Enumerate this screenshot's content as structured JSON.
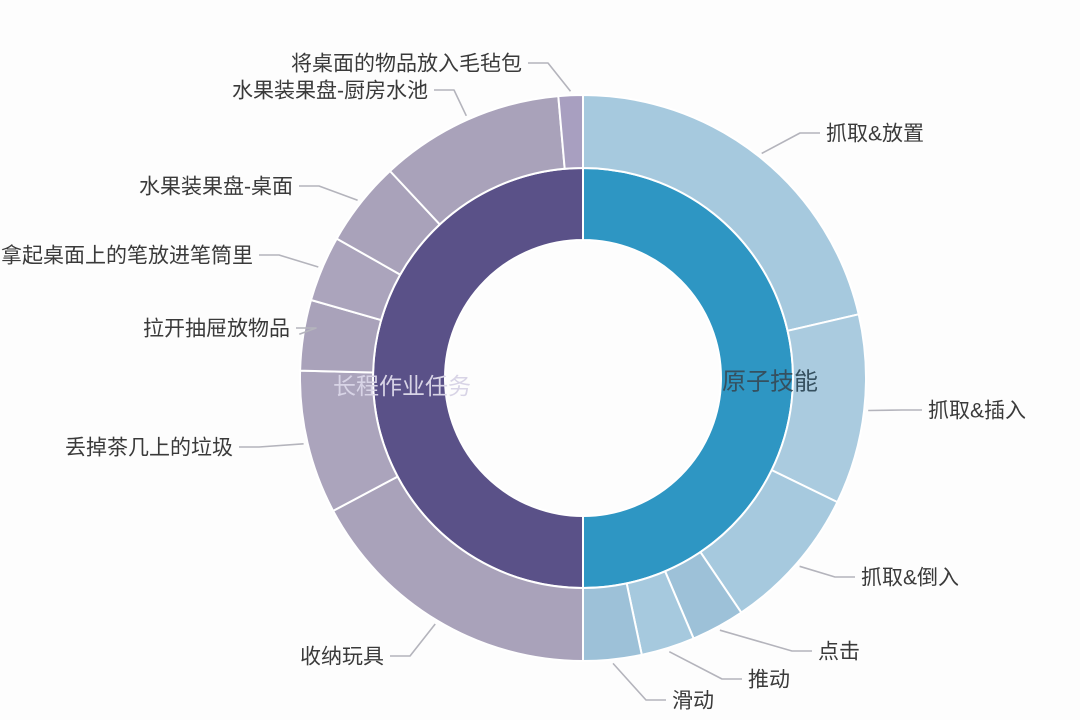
{
  "figure": {
    "background": "#fdfdfd"
  },
  "chart_data": {
    "type": "sunburst",
    "direction": "clockwise",
    "start_angle_degrees": 0,
    "units": "degrees (proportion of whole; 360 = 100%)",
    "leader_line_color": "#b4b4bc",
    "outer_label_color": "#3a3a3a",
    "rings": {
      "inner": {
        "name": "task-categories",
        "segments": [
          {
            "label": "原子技能",
            "value_degrees": 180,
            "color": "#2e96c3",
            "label_color": "#35505f"
          },
          {
            "label": "长程作业任务",
            "value_degrees": 180,
            "color": "#5a5188",
            "label_color": "#d8d4e6"
          }
        ]
      },
      "outer": {
        "name": "task-items",
        "segments": [
          {
            "label": "抓取&放置",
            "parent": "原子技能",
            "value_degrees": 77,
            "color": "#a6c9de"
          },
          {
            "label": "抓取&插入",
            "parent": "原子技能",
            "value_degrees": 39,
            "color": "#aacbdf"
          },
          {
            "label": "抓取&倒入",
            "parent": "原子技能",
            "value_degrees": 30,
            "color": "#a6c9de"
          },
          {
            "label": "点击",
            "parent": "原子技能",
            "value_degrees": 11,
            "color": "#9dc1d8"
          },
          {
            "label": "推动",
            "parent": "原子技能",
            "value_degrees": 11,
            "color": "#a6c9de"
          },
          {
            "label": "滑动",
            "parent": "原子技能",
            "value_degrees": 12,
            "color": "#9dc1d8"
          },
          {
            "label": "收纳玩具",
            "parent": "长程作业任务",
            "value_degrees": 62,
            "color": "#a9a2ba"
          },
          {
            "label": "丢掉茶几上的垃圾",
            "parent": "长程作业任务",
            "value_degrees": 29.5,
            "color": "#aba4bc"
          },
          {
            "label": "拉开抽屉放物品",
            "parent": "长程作业任务",
            "value_degrees": 14.5,
            "color": "#a9a2ba"
          },
          {
            "label": "拿起桌面上的笔放进笔筒里",
            "parent": "长程作业任务",
            "value_degrees": 13.5,
            "color": "#aba4bc"
          },
          {
            "label": "水果装果盘-桌面",
            "parent": "长程作业任务",
            "value_degrees": 17.5,
            "color": "#a9a2ba"
          },
          {
            "label": "水果装果盘-厨房水池",
            "parent": "长程作业任务",
            "value_degrees": 38,
            "color": "#a9a2ba"
          },
          {
            "label": "将桌面的物品放入毛毡包",
            "parent": "长程作业任务",
            "value_degrees": 5,
            "color": "#a89fc0"
          }
        ]
      }
    }
  }
}
